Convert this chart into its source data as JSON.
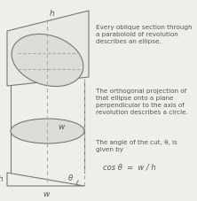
{
  "background_color": "#efefea",
  "text_color": "#555555",
  "line_color": "#777777",
  "dashed_color": "#aaaaaa",
  "text1": "Every oblique section through\na paraboloid of revolution\ndescribes an ellipse.",
  "text2": "The orthogonal projection of\nthat ellipse onto a plane\nperpendicular to the axis of\nrevolution describes a circle.",
  "text3": "The angle of the cut, θ, is\ngiven by",
  "text4": "cos θ  =  w / h",
  "label_h_top": "h",
  "label_w_mid": "w",
  "label_h_bot": "h",
  "label_w_bot": "w",
  "label_theta": "θ",
  "font_size_labels": 6.5,
  "font_size_text": 5.2,
  "font_size_formula": 6.0,
  "figwidth": 2.22,
  "figheight": 2.27,
  "dpi": 100
}
